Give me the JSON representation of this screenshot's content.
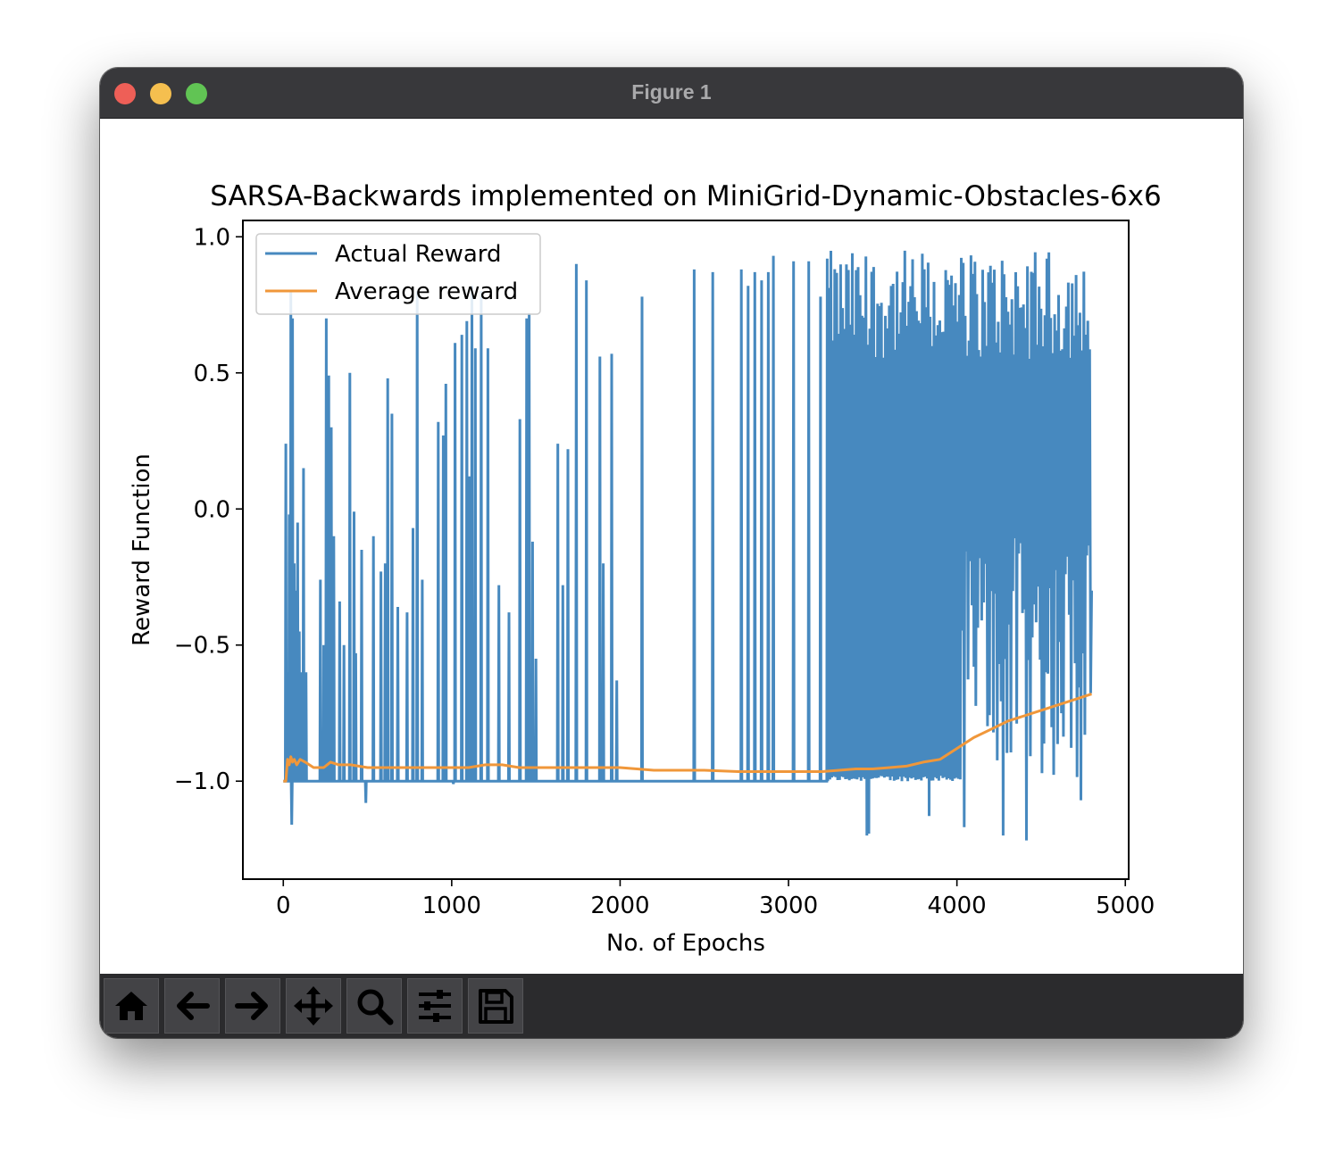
{
  "window": {
    "title": "Figure 1"
  },
  "toolbar": {
    "buttons": [
      {
        "icon": "home-icon",
        "name": "home"
      },
      {
        "icon": "arrow-left-icon",
        "name": "back"
      },
      {
        "icon": "arrow-right-icon",
        "name": "forward"
      },
      {
        "icon": "pan-icon",
        "name": "pan"
      },
      {
        "icon": "zoom-icon",
        "name": "zoom"
      },
      {
        "icon": "sliders-icon",
        "name": "configure-subplots"
      },
      {
        "icon": "save-icon",
        "name": "save"
      }
    ]
  },
  "chart_data": {
    "type": "line",
    "title": "SARSA-Backwards implemented on MiniGrid-Dynamic-Obstacles-6x6",
    "xlabel": "No. of Epochs",
    "ylabel": "Reward Function",
    "xlim": [
      -240,
      5020
    ],
    "ylim": [
      -1.36,
      1.06
    ],
    "xticks": [
      0,
      1000,
      2000,
      3000,
      4000,
      5000
    ],
    "xtick_labels": [
      "0",
      "1000",
      "2000",
      "3000",
      "4000",
      "5000"
    ],
    "yticks": [
      1.0,
      0.5,
      0.0,
      -0.5,
      -1.0
    ],
    "ytick_labels": [
      "1.0",
      "0.5",
      "0.0",
      "−0.5",
      "−1.0"
    ],
    "grid": false,
    "legend_position": "upper-left",
    "baseline": -1.0,
    "colors": {
      "actual": "#4789bf",
      "average": "#f0973a"
    },
    "series": [
      {
        "name": "Actual Reward",
        "color": "#4789bf",
        "spikes": [
          [
            15,
            0.24
          ],
          [
            25,
            -0.6
          ],
          [
            35,
            -0.02
          ],
          [
            45,
            0.8
          ],
          [
            50,
            -1.16
          ],
          [
            55,
            0.7
          ],
          [
            65,
            -0.2
          ],
          [
            75,
            -0.3
          ],
          [
            85,
            -0.05
          ],
          [
            95,
            -0.45
          ],
          [
            110,
            -0.6
          ],
          [
            120,
            0.15
          ],
          [
            135,
            -0.6
          ],
          [
            220,
            -0.26
          ],
          [
            240,
            -0.5
          ],
          [
            255,
            0.7
          ],
          [
            270,
            0.49
          ],
          [
            285,
            0.3
          ],
          [
            300,
            -0.1
          ],
          [
            335,
            -0.34
          ],
          [
            360,
            -0.5
          ],
          [
            395,
            0.5
          ],
          [
            420,
            -0.01
          ],
          [
            430,
            -0.53
          ],
          [
            465,
            -0.15
          ],
          [
            490,
            -1.08
          ],
          [
            535,
            -0.1
          ],
          [
            580,
            -0.23
          ],
          [
            605,
            -0.2
          ],
          [
            620,
            0.48
          ],
          [
            645,
            0.35
          ],
          [
            680,
            -0.36
          ],
          [
            735,
            -0.38
          ],
          [
            770,
            -0.07
          ],
          [
            795,
            0.8
          ],
          [
            825,
            -0.26
          ],
          [
            920,
            0.32
          ],
          [
            950,
            0.27
          ],
          [
            965,
            0.46
          ],
          [
            1010,
            -1.01
          ],
          [
            1020,
            0.61
          ],
          [
            1060,
            0.64
          ],
          [
            1090,
            0.69
          ],
          [
            1105,
            0.12
          ],
          [
            1120,
            0.82
          ],
          [
            1140,
            0.59
          ],
          [
            1175,
            0.8
          ],
          [
            1215,
            0.59
          ],
          [
            1280,
            -0.28
          ],
          [
            1340,
            -0.38
          ],
          [
            1405,
            0.33
          ],
          [
            1445,
            0.7
          ],
          [
            1460,
            0.72
          ],
          [
            1480,
            -0.12
          ],
          [
            1500,
            -0.55
          ],
          [
            1630,
            0.24
          ],
          [
            1660,
            -0.28
          ],
          [
            1690,
            0.22
          ],
          [
            1740,
            0.9
          ],
          [
            1800,
            0.84
          ],
          [
            1880,
            0.56
          ],
          [
            1900,
            -0.2
          ],
          [
            1950,
            0.57
          ],
          [
            1980,
            -0.63
          ],
          [
            2130,
            0.78
          ],
          [
            2440,
            0.88
          ],
          [
            2550,
            0.87
          ],
          [
            2720,
            0.88
          ],
          [
            2760,
            0.82
          ],
          [
            2800,
            0.87
          ],
          [
            2840,
            0.84
          ],
          [
            2880,
            0.87
          ],
          [
            2910,
            0.93
          ],
          [
            3030,
            0.91
          ],
          [
            3120,
            0.91
          ],
          [
            3190,
            0.78
          ],
          [
            3230,
            0.92
          ]
        ],
        "dense_region": {
          "x_start": 3240,
          "x_end": 4800,
          "min": -1.25,
          "max": 0.96,
          "ticks": 135
        }
      },
      {
        "name": "Average reward",
        "color": "#f0973a",
        "x": [
          0,
          15,
          25,
          35,
          45,
          55,
          65,
          80,
          100,
          130,
          180,
          240,
          280,
          330,
          400,
          500,
          600,
          700,
          800,
          900,
          1000,
          1100,
          1200,
          1300,
          1400,
          1500,
          1700,
          2000,
          2200,
          2500,
          2700,
          3000,
          3200,
          3300,
          3400,
          3500,
          3600,
          3700,
          3800,
          3900,
          4000,
          4100,
          4200,
          4300,
          4400,
          4500,
          4600,
          4700,
          4800
        ],
        "y": [
          -1.0,
          -1.0,
          -0.92,
          -0.94,
          -0.91,
          -0.93,
          -0.92,
          -0.94,
          -0.92,
          -0.93,
          -0.95,
          -0.95,
          -0.93,
          -0.94,
          -0.94,
          -0.95,
          -0.95,
          -0.95,
          -0.95,
          -0.95,
          -0.95,
          -0.95,
          -0.94,
          -0.94,
          -0.95,
          -0.95,
          -0.95,
          -0.95,
          -0.96,
          -0.96,
          -0.965,
          -0.965,
          -0.965,
          -0.96,
          -0.955,
          -0.955,
          -0.95,
          -0.945,
          -0.93,
          -0.92,
          -0.88,
          -0.84,
          -0.81,
          -0.78,
          -0.76,
          -0.74,
          -0.72,
          -0.7,
          -0.68
        ]
      }
    ]
  }
}
